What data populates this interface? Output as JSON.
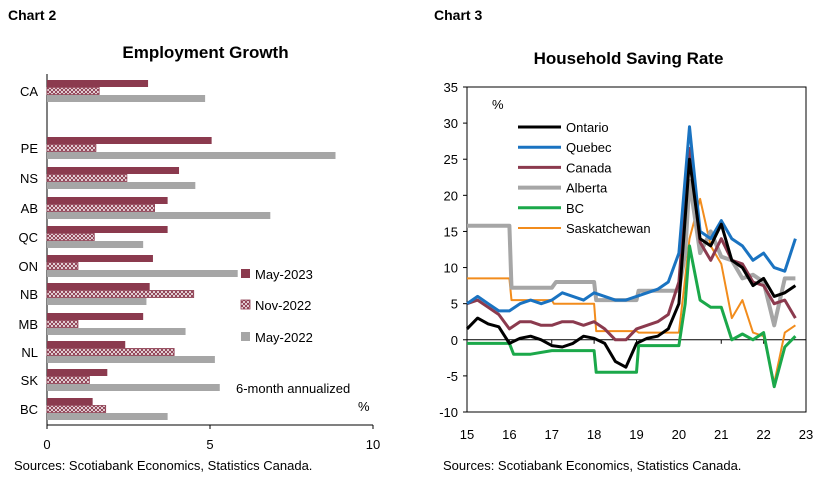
{
  "chart_data": [
    {
      "type": "bar",
      "orientation": "horizontal",
      "chart_label": "Chart 2",
      "title": "Employment Growth",
      "categories": [
        "CA",
        "PE",
        "NS",
        "AB",
        "QC",
        "ON",
        "NB",
        "MB",
        "NL",
        "SK",
        "BC"
      ],
      "series": [
        {
          "name": "May-2023",
          "color": "#8b3a4e",
          "pattern": "solid",
          "values": [
            3.1,
            5.05,
            4.05,
            3.7,
            3.7,
            3.25,
            3.15,
            2.95,
            2.4,
            1.85,
            1.4
          ]
        },
        {
          "name": "Nov-2022",
          "color": "#8b3a4e",
          "pattern": "crosshatch",
          "values": [
            1.6,
            1.5,
            2.45,
            3.3,
            1.45,
            0.95,
            4.5,
            0.95,
            3.9,
            1.3,
            1.8
          ]
        },
        {
          "name": "May-2022",
          "color": "#a6a6a6",
          "pattern": "solid",
          "values": [
            4.85,
            8.85,
            4.55,
            6.85,
            2.95,
            5.85,
            3.05,
            4.25,
            5.15,
            5.3,
            3.7
          ]
        }
      ],
      "xlim": [
        0,
        10
      ],
      "x_ticks": [
        "0",
        "5",
        "10"
      ],
      "x_unit": "%",
      "annotation": "6-month annualized",
      "legend_position": "right",
      "source": "Sources: Scotiabank Economics, Statistics Canada."
    },
    {
      "type": "line",
      "chart_label": "Chart 3",
      "title": "Household Saving Rate",
      "ylabel": "%",
      "ylim": [
        -10,
        35
      ],
      "y_ticks": [
        "-10",
        "-5",
        "0",
        "5",
        "10",
        "15",
        "20",
        "25",
        "30",
        "35"
      ],
      "xlim": [
        2015,
        2023
      ],
      "x_ticks": [
        "15",
        "16",
        "17",
        "18",
        "19",
        "20",
        "21",
        "22",
        "23"
      ],
      "legend_position": "top-left",
      "series": [
        {
          "name": "Ontario",
          "color": "#000000",
          "width": 3,
          "points": [
            [
              2015,
              1.5
            ],
            [
              2015.25,
              3.0
            ],
            [
              2015.5,
              2.2
            ],
            [
              2015.75,
              1.8
            ],
            [
              2016,
              -0.5
            ],
            [
              2016.25,
              0.2
            ],
            [
              2016.5,
              0.5
            ],
            [
              2016.75,
              0.0
            ],
            [
              2017,
              -0.8
            ],
            [
              2017.25,
              -1.0
            ],
            [
              2017.5,
              -0.5
            ],
            [
              2017.75,
              0.5
            ],
            [
              2018,
              0.2
            ],
            [
              2018.25,
              -0.5
            ],
            [
              2018.5,
              -3.0
            ],
            [
              2018.75,
              -3.8
            ],
            [
              2019,
              -0.5
            ],
            [
              2019.25,
              0.2
            ],
            [
              2019.5,
              0.5
            ],
            [
              2019.75,
              1.5
            ],
            [
              2020,
              5.0
            ],
            [
              2020.25,
              25.0
            ],
            [
              2020.5,
              14.0
            ],
            [
              2020.75,
              13.0
            ],
            [
              2021,
              16.0
            ],
            [
              2021.25,
              11.0
            ],
            [
              2021.5,
              10.0
            ],
            [
              2021.75,
              7.5
            ],
            [
              2022,
              8.5
            ],
            [
              2022.25,
              6.0
            ],
            [
              2022.5,
              6.5
            ],
            [
              2022.75,
              7.5
            ]
          ]
        },
        {
          "name": "Quebec",
          "color": "#1a73c1",
          "width": 3,
          "points": [
            [
              2015,
              5.0
            ],
            [
              2015.25,
              6.0
            ],
            [
              2015.5,
              5.0
            ],
            [
              2015.75,
              4.0
            ],
            [
              2016,
              4.0
            ],
            [
              2016.25,
              5.0
            ],
            [
              2016.5,
              5.5
            ],
            [
              2016.75,
              5.0
            ],
            [
              2017,
              5.5
            ],
            [
              2017.25,
              6.5
            ],
            [
              2017.5,
              6.0
            ],
            [
              2017.75,
              5.5
            ],
            [
              2018,
              6.5
            ],
            [
              2018.25,
              6.0
            ],
            [
              2018.5,
              5.5
            ],
            [
              2018.75,
              5.5
            ],
            [
              2019,
              6.0
            ],
            [
              2019.25,
              6.5
            ],
            [
              2019.5,
              7.0
            ],
            [
              2019.75,
              8.0
            ],
            [
              2020,
              12.0
            ],
            [
              2020.25,
              29.5
            ],
            [
              2020.5,
              15.0
            ],
            [
              2020.75,
              14.0
            ],
            [
              2021,
              16.5
            ],
            [
              2021.25,
              14.0
            ],
            [
              2021.5,
              13.0
            ],
            [
              2021.75,
              11.0
            ],
            [
              2022,
              12.0
            ],
            [
              2022.25,
              10.0
            ],
            [
              2022.5,
              9.5
            ],
            [
              2022.75,
              14.0
            ]
          ]
        },
        {
          "name": "Canada",
          "color": "#8b3a4e",
          "width": 3,
          "points": [
            [
              2015,
              5.0
            ],
            [
              2015.25,
              5.5
            ],
            [
              2015.5,
              4.5
            ],
            [
              2015.75,
              3.5
            ],
            [
              2016,
              1.5
            ],
            [
              2016.25,
              2.5
            ],
            [
              2016.5,
              2.5
            ],
            [
              2016.75,
              2.0
            ],
            [
              2017,
              2.0
            ],
            [
              2017.25,
              2.5
            ],
            [
              2017.5,
              2.5
            ],
            [
              2017.75,
              2.0
            ],
            [
              2018,
              2.5
            ],
            [
              2018.25,
              1.5
            ],
            [
              2018.5,
              0.0
            ],
            [
              2018.75,
              0.0
            ],
            [
              2019,
              1.5
            ],
            [
              2019.25,
              2.0
            ],
            [
              2019.5,
              2.5
            ],
            [
              2019.75,
              3.5
            ],
            [
              2020,
              8.0
            ],
            [
              2020.25,
              26.5
            ],
            [
              2020.5,
              13.5
            ],
            [
              2020.75,
              11.0
            ],
            [
              2021,
              14.0
            ],
            [
              2021.25,
              11.0
            ],
            [
              2021.5,
              10.5
            ],
            [
              2021.75,
              8.0
            ],
            [
              2022,
              7.5
            ],
            [
              2022.25,
              5.0
            ],
            [
              2022.5,
              5.5
            ],
            [
              2022.75,
              3.0
            ]
          ]
        },
        {
          "name": "Alberta",
          "color": "#a6a6a6",
          "width": 4,
          "points": [
            [
              2015,
              15.8
            ],
            [
              2015.5,
              15.8
            ],
            [
              2016,
              15.8
            ],
            [
              2016.05,
              7.2
            ],
            [
              2016.5,
              7.2
            ],
            [
              2017,
              7.2
            ],
            [
              2017.1,
              8.0
            ],
            [
              2017.5,
              8.0
            ],
            [
              2018,
              8.0
            ],
            [
              2018.05,
              5.5
            ],
            [
              2018.5,
              5.5
            ],
            [
              2019,
              5.5
            ],
            [
              2019.05,
              6.8
            ],
            [
              2019.5,
              6.8
            ],
            [
              2020,
              6.8
            ],
            [
              2020.15,
              12.0
            ],
            [
              2020.25,
              22.0
            ],
            [
              2020.5,
              12.0
            ],
            [
              2020.75,
              15.0
            ],
            [
              2021,
              11.5
            ],
            [
              2021.25,
              11.0
            ],
            [
              2021.5,
              8.5
            ],
            [
              2021.75,
              9.0
            ],
            [
              2022,
              8.0
            ],
            [
              2022.25,
              2.0
            ],
            [
              2022.5,
              8.5
            ],
            [
              2022.75,
              8.5
            ]
          ]
        },
        {
          "name": "BC",
          "color": "#1ba84a",
          "width": 3,
          "points": [
            [
              2015,
              -0.5
            ],
            [
              2015.5,
              -0.5
            ],
            [
              2016,
              -0.5
            ],
            [
              2016.1,
              -2.0
            ],
            [
              2016.5,
              -2.0
            ],
            [
              2017,
              -1.5
            ],
            [
              2017.5,
              -1.5
            ],
            [
              2018,
              -1.5
            ],
            [
              2018.05,
              -4.5
            ],
            [
              2018.5,
              -4.5
            ],
            [
              2019,
              -4.5
            ],
            [
              2019.05,
              -0.8
            ],
            [
              2019.5,
              -0.8
            ],
            [
              2020,
              -0.8
            ],
            [
              2020.15,
              5.0
            ],
            [
              2020.25,
              13.0
            ],
            [
              2020.5,
              5.5
            ],
            [
              2020.75,
              4.5
            ],
            [
              2021,
              4.5
            ],
            [
              2021.25,
              0.0
            ],
            [
              2021.5,
              0.8
            ],
            [
              2021.75,
              0.0
            ],
            [
              2022,
              1.0
            ],
            [
              2022.25,
              -6.5
            ],
            [
              2022.5,
              -1.0
            ],
            [
              2022.75,
              0.5
            ]
          ]
        },
        {
          "name": "Saskatchewan",
          "color": "#f28c1c",
          "width": 2,
          "points": [
            [
              2015,
              8.5
            ],
            [
              2015.5,
              8.5
            ],
            [
              2016,
              8.5
            ],
            [
              2016.05,
              5.5
            ],
            [
              2016.5,
              5.5
            ],
            [
              2017,
              5.5
            ],
            [
              2017.05,
              5.0
            ],
            [
              2017.5,
              5.0
            ],
            [
              2018,
              5.0
            ],
            [
              2018.05,
              1.2
            ],
            [
              2018.5,
              1.2
            ],
            [
              2019,
              1.2
            ],
            [
              2019.05,
              1.0
            ],
            [
              2019.5,
              1.0
            ],
            [
              2020,
              1.0
            ],
            [
              2020.1,
              6.0
            ],
            [
              2020.25,
              14.0
            ],
            [
              2020.5,
              19.5
            ],
            [
              2020.75,
              13.0
            ],
            [
              2021,
              10.5
            ],
            [
              2021.25,
              3.0
            ],
            [
              2021.5,
              5.5
            ],
            [
              2021.75,
              1.0
            ],
            [
              2022,
              0.5
            ],
            [
              2022.25,
              -6.0
            ],
            [
              2022.5,
              1.0
            ],
            [
              2022.75,
              2.0
            ]
          ]
        }
      ],
      "source": "Sources: Scotiabank Economics, Statistics Canada."
    }
  ]
}
